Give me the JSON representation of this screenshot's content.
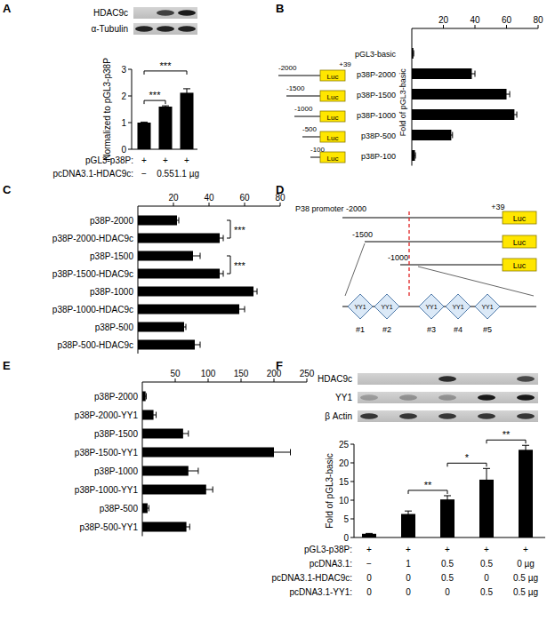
{
  "chart_data": [
    {
      "label": "A",
      "type": "bar",
      "ylabel": "Normalized to pGL3-p38P",
      "categories": [
        null,
        null,
        null
      ],
      "values": [
        1.0,
        1.6,
        2.12
      ],
      "errors": [
        0.02,
        0.03,
        0.15
      ],
      "color": "#000000",
      "ylim": [
        0,
        3
      ],
      "yticks": [
        0,
        1,
        2,
        3
      ],
      "blot_labels": [
        "HDAC9c",
        "α-Tubulin"
      ],
      "condition_rows": [
        {
          "label": "pGL3-p38P:",
          "values": [
            "+",
            "+",
            "+"
          ]
        },
        {
          "label": "pcDNA3.1-HDAC9c:",
          "values": [
            "−",
            "0.55",
            "1.1 µg"
          ]
        }
      ],
      "significance": [
        {
          "text": "***",
          "pair": [
            0,
            1
          ]
        },
        {
          "text": "***",
          "pair": [
            0,
            2
          ]
        }
      ]
    },
    {
      "label": "B",
      "type": "bar",
      "orientation": "horizontal",
      "xlabel": "Fold of pGL3-basic",
      "categories": [
        "pGL3-basic",
        "p38P-2000",
        "p38P-1500",
        "p38P-1000",
        "p38P-500",
        "p38P-100"
      ],
      "values": [
        1,
        38,
        60,
        65,
        25,
        2
      ],
      "errors": [
        0.2,
        2,
        2,
        1.5,
        0.8,
        0.3
      ],
      "color": "#000000",
      "xlim": [
        0,
        80
      ],
      "xticks": [
        20,
        40,
        60,
        80
      ]
    },
    {
      "label": "C",
      "type": "bar",
      "orientation": "horizontal",
      "categories": [
        "p38P-2000",
        "p38P-2000-HDAC9c",
        "p38P-1500",
        "p38P-1500-HDAC9c",
        "p38P-1000",
        "p38P-1000-HDAC9c",
        "p38P-500",
        "p38P-500-HDAC9c"
      ],
      "values": [
        22,
        46,
        31,
        46,
        65,
        57,
        26,
        32
      ],
      "errors": [
        1,
        2,
        4,
        2,
        2,
        3,
        1,
        3
      ],
      "color": "#000000",
      "xlim": [
        0,
        80
      ],
      "xticks": [
        20,
        40,
        60,
        80
      ],
      "significance": [
        {
          "text": "***",
          "pair": [
            0,
            1
          ]
        },
        {
          "text": "***",
          "pair": [
            2,
            3
          ]
        }
      ]
    },
    {
      "label": "E",
      "type": "bar",
      "orientation": "horizontal",
      "categories": [
        "p38P-2000",
        "p38P-2000-YY1",
        "p38P-1500",
        "p38P-1500-YY1",
        "p38P-1000",
        "p38P-1000-YY1",
        "p38P-500",
        "p38P-500-YY1"
      ],
      "values": [
        5,
        17,
        62,
        200,
        70,
        97,
        8,
        67
      ],
      "errors": [
        1,
        4,
        8,
        25,
        15,
        10,
        2,
        5
      ],
      "color": "#000000",
      "xlim": [
        0,
        250
      ],
      "xticks": [
        50,
        100,
        150,
        200,
        250
      ]
    },
    {
      "label": "F",
      "type": "bar",
      "ylabel": "Fold of pGL3-basic",
      "categories": [
        null,
        null,
        null,
        null,
        null
      ],
      "values": [
        1,
        6.3,
        10.2,
        15.5,
        23.5
      ],
      "errors": [
        0.1,
        0.8,
        1.0,
        3.0,
        1.2
      ],
      "color": "#000000",
      "ylim": [
        0,
        25
      ],
      "yticks": [
        0,
        5,
        10,
        15,
        20,
        25
      ],
      "blot_labels": [
        "HDAC9c",
        "YY1",
        "β Actin"
      ],
      "condition_rows": [
        {
          "label": "pGL3-p38P:",
          "values": [
            "+",
            "+",
            "+",
            "+",
            "+"
          ]
        },
        {
          "label": "pcDNA3.1:",
          "values": [
            "−",
            "1",
            "0.5",
            "0.5",
            "0 µg"
          ]
        },
        {
          "label": "pcDNA3.1-HDAC9c:",
          "values": [
            "0",
            "0",
            "0.5",
            "0",
            "0.5 µg"
          ]
        },
        {
          "label": "pcDNA3.1-YY1:",
          "values": [
            "0",
            "0",
            "0",
            "0.5",
            "0.5 µg"
          ]
        }
      ],
      "significance": [
        {
          "text": "**",
          "pair": [
            1,
            2
          ]
        },
        {
          "text": "*",
          "pair": [
            2,
            3
          ]
        },
        {
          "text": "**",
          "pair": [
            3,
            4
          ]
        }
      ]
    }
  ],
  "schematic_b": {
    "start_labels": [
      "-2000",
      "-1500",
      "-1000",
      "-500",
      "-100"
    ],
    "end_label": "+39",
    "box_label": "Luc"
  },
  "diagram_d": {
    "label": "D",
    "promoter_label": "P38 promoter -2000",
    "end_label": "+39",
    "start_labels": [
      "-1500",
      "-1000"
    ],
    "box_label": "Luc",
    "site_label": "YY1",
    "sites": [
      "#1",
      "#2",
      "#3",
      "#4",
      "#5"
    ]
  }
}
